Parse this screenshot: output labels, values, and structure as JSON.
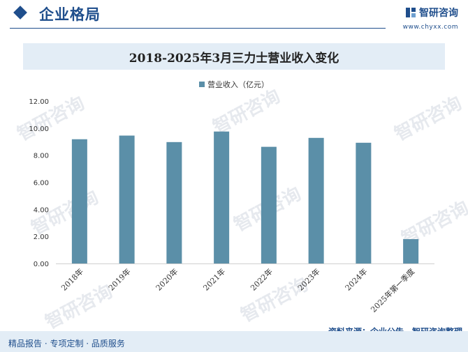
{
  "header": {
    "section_title": "企业格局",
    "brand_name": "智研咨询",
    "brand_url": "www.chyxx.com"
  },
  "watermark": {
    "text": "智研咨询"
  },
  "chart_data": {
    "type": "bar",
    "title": "2018-2025年3月三力士营业收入变化",
    "categories": [
      "2018年",
      "2019年",
      "2020年",
      "2021年",
      "2022年",
      "2023年",
      "2024年",
      "2025年第一季度"
    ],
    "series": [
      {
        "name": "营业收入（亿元）",
        "values": [
          9.18,
          9.45,
          8.97,
          9.75,
          8.62,
          9.28,
          8.92,
          1.8
        ]
      }
    ],
    "ylim": [
      0,
      12
    ],
    "yticks": [
      "0.00",
      "2.00",
      "4.00",
      "6.00",
      "8.00",
      "10.00",
      "12.00"
    ],
    "grid": false,
    "legend": "top-center",
    "color": "#5b8fa8"
  },
  "footer": {
    "tagline": "精品报告 · 专项定制 · 品质服务",
    "source": "资料来源：企业公告，智研咨询整理"
  }
}
